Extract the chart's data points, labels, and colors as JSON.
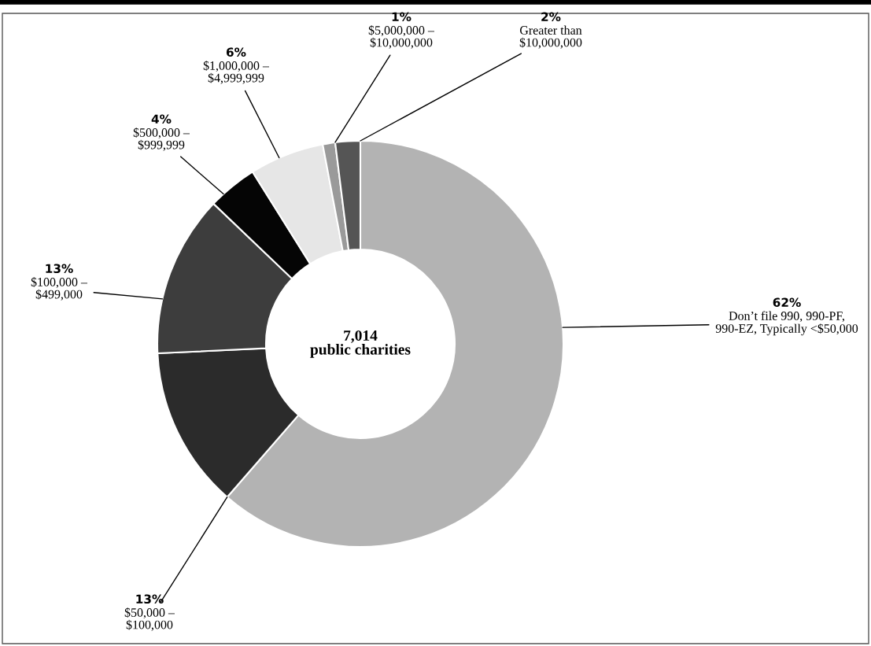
{
  "chart_data": {
    "type": "donut",
    "categories": [
      "Don’t file 990, 990-PF,\n990-EZ, Typically <$50,000",
      "$50,000 –\n$100,000",
      "$100,000 –\n$499,000",
      "$500,000 –\n$999,999",
      "$1,000,000 –\n$4,999,999",
      "$5,000,000 –\n$10,000,000",
      "Greater than\n$10,000,000"
    ],
    "values": [
      62,
      13,
      13,
      4,
      6,
      1,
      2
    ],
    "value_labels": [
      "62%",
      "13%",
      "13%",
      "4%",
      "6%",
      "1%",
      "2%"
    ],
    "colors": [
      "#b3b3b3",
      "#2b2b2b",
      "#3d3d3d",
      "#050505",
      "#e6e6e6",
      "#9a9a9a",
      "#555555"
    ],
    "annotations": [
      "7,014\npublic charities"
    ]
  }
}
